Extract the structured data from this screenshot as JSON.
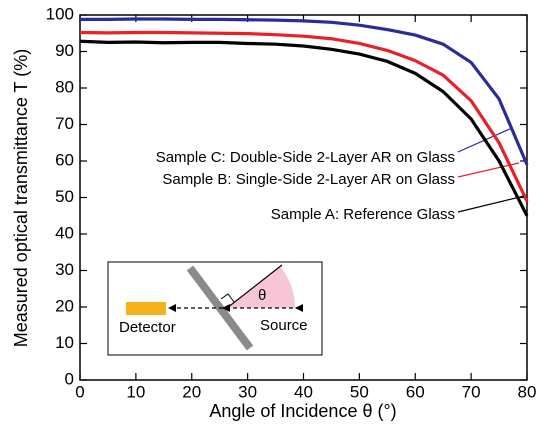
{
  "chart_data": {
    "type": "line",
    "xlabel": "Angle of Incidence θ (°)",
    "ylabel": "Measured optical transmittance T (%)",
    "x": [
      0,
      5,
      10,
      15,
      20,
      25,
      30,
      35,
      40,
      45,
      50,
      55,
      60,
      65,
      70,
      75,
      80
    ],
    "series": [
      {
        "name": "Sample C: Double-Side 2-Layer AR on Glass",
        "color": "#2b2b9a",
        "values": [
          98.8,
          98.8,
          98.9,
          98.9,
          98.8,
          98.8,
          98.7,
          98.6,
          98.4,
          98.0,
          97.2,
          96.0,
          94.5,
          92.0,
          87.0,
          77.0,
          59.0
        ]
      },
      {
        "name": "Sample B: Single-Side 2-Layer AR on Glass",
        "color": "#e8202a",
        "values": [
          95.2,
          95.1,
          95.2,
          95.2,
          95.1,
          95.0,
          94.9,
          94.6,
          94.2,
          93.5,
          92.2,
          90.3,
          87.5,
          83.5,
          76.5,
          65.0,
          49.0
        ]
      },
      {
        "name": "Sample A: Reference Glass",
        "color": "#000000",
        "values": [
          92.8,
          92.5,
          92.6,
          92.4,
          92.5,
          92.5,
          92.2,
          92.0,
          91.5,
          90.6,
          89.3,
          87.3,
          84.0,
          79.0,
          71.5,
          60.0,
          45.0
        ]
      }
    ],
    "xlim": [
      0,
      80
    ],
    "xticks": [
      0,
      10,
      20,
      30,
      40,
      50,
      60,
      70,
      80
    ],
    "ylim": [
      0,
      100
    ],
    "yticks": [
      0,
      10,
      20,
      30,
      40,
      50,
      60,
      70,
      80,
      90,
      100
    ],
    "grid": false,
    "inset": {
      "detector": "Detector",
      "source": "Source",
      "angle": "θ"
    }
  }
}
